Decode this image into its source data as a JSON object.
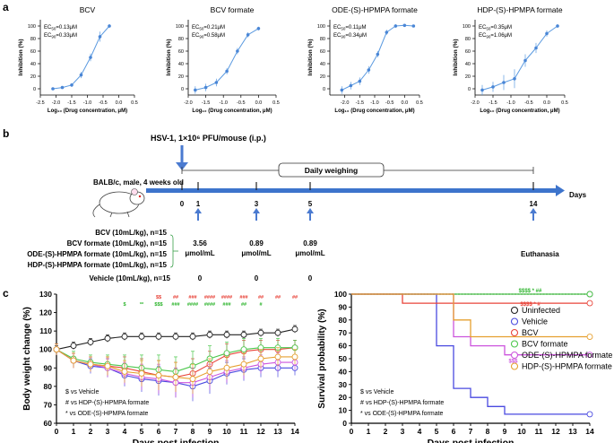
{
  "panel_labels": {
    "a": "a",
    "b": "b",
    "c": "c"
  },
  "chart_data": [
    {
      "type": "line",
      "title": "BCV",
      "ec50": "0.13",
      "ec90": "0.33",
      "xlabel": "Log₁₀ (Drug concentration, μM)",
      "ylabel": "Inhibition (%)",
      "xlim": [
        -2.5,
        0.5
      ],
      "ylim": [
        -10,
        110
      ],
      "xticks": [
        -2.5,
        -2.0,
        -1.5,
        -1.0,
        -0.5,
        0.0,
        0.5
      ],
      "yticks": [
        0,
        20,
        40,
        60,
        80,
        100
      ],
      "x": [
        -2.1,
        -1.8,
        -1.5,
        -1.2,
        -0.9,
        -0.6,
        -0.3
      ],
      "y": [
        0,
        2,
        6,
        22,
        50,
        83,
        100
      ],
      "err": [
        1,
        2,
        3,
        5,
        6,
        8,
        3
      ]
    },
    {
      "type": "line",
      "title": "BCV formate",
      "ec50": "0.21",
      "ec90": "0.58",
      "xlabel": "Log₁₀ (Drug concentration, μM)",
      "ylabel": "Inhibition (%)",
      "xlim": [
        -2.0,
        0.5
      ],
      "ylim": [
        -10,
        110
      ],
      "xticks": [
        -2.0,
        -1.5,
        -1.0,
        -0.5,
        0.0,
        0.5
      ],
      "yticks": [
        0,
        20,
        40,
        60,
        80,
        100
      ],
      "x": [
        -1.8,
        -1.5,
        -1.2,
        -0.9,
        -0.6,
        -0.3,
        0.0
      ],
      "y": [
        -2,
        2,
        10,
        28,
        60,
        86,
        96
      ],
      "err": [
        6,
        6,
        6,
        5,
        5,
        4,
        3
      ]
    },
    {
      "type": "line",
      "title": "ODE-(S)-HPMPA formate",
      "ec50": "0.11",
      "ec90": "0.34",
      "xlabel": "Log₁₀ (Drug concentration, μM)",
      "ylabel": "Inhibition (%)",
      "xlim": [
        -2.5,
        0.5
      ],
      "ylim": [
        -10,
        110
      ],
      "xticks": [
        -2.0,
        -1.5,
        -1.0,
        -0.5,
        0.0,
        0.5
      ],
      "yticks": [
        0,
        20,
        40,
        60,
        80,
        100
      ],
      "x": [
        -2.1,
        -1.8,
        -1.5,
        -1.2,
        -0.9,
        -0.6,
        -0.3,
        0.0,
        0.3
      ],
      "y": [
        -2,
        5,
        12,
        30,
        55,
        90,
        100,
        101,
        100
      ],
      "err": [
        6,
        6,
        6,
        6,
        5,
        4,
        3,
        2,
        2
      ]
    },
    {
      "type": "line",
      "title": "HDP-(S)-HPMPA formate",
      "ec50": "0.35",
      "ec90": "1.06",
      "xlabel": "Log₁₀ (Drug concentration, μM)",
      "ylabel": "Inhibition (%)",
      "xlim": [
        -2.0,
        0.5
      ],
      "ylim": [
        -10,
        110
      ],
      "xticks": [
        -2.0,
        -1.5,
        -1.0,
        -0.5,
        0.0,
        0.5
      ],
      "yticks": [
        0,
        20,
        40,
        60,
        80,
        100
      ],
      "x": [
        -1.8,
        -1.5,
        -1.2,
        -0.9,
        -0.6,
        -0.3,
        0.0,
        0.3
      ],
      "y": [
        -2,
        3,
        10,
        16,
        45,
        65,
        88,
        100
      ],
      "err": [
        8,
        8,
        12,
        15,
        10,
        8,
        5,
        3
      ]
    },
    {
      "type": "line",
      "title": "",
      "xlabel": "Days post infection",
      "ylabel": "Body weight change (%)",
      "xlim": [
        0,
        14
      ],
      "ylim": [
        60,
        130
      ],
      "xticks": [
        0,
        1,
        2,
        3,
        4,
        5,
        6,
        7,
        8,
        9,
        10,
        11,
        12,
        13,
        14
      ],
      "yticks": [
        60,
        70,
        80,
        90,
        100,
        110,
        120,
        130
      ],
      "series": [
        {
          "name": "Uninfected",
          "color": "#222222",
          "y": [
            100,
            102,
            104,
            106,
            107,
            107,
            107,
            107,
            107,
            108,
            108,
            108,
            109,
            109,
            111
          ],
          "err": [
            2,
            2,
            2,
            2,
            2,
            2,
            2,
            2,
            2,
            2,
            2,
            2,
            2,
            2,
            2
          ]
        },
        {
          "name": "Vehicle",
          "color": "#4a4ae0",
          "y": [
            100,
            94,
            91,
            90,
            86,
            84,
            83,
            82,
            80,
            83,
            87,
            89,
            90,
            90,
            90
          ],
          "err": [
            3,
            4,
            4,
            5,
            6,
            7,
            8,
            8,
            8,
            7,
            6,
            6,
            5,
            5,
            4
          ]
        },
        {
          "name": "BCV",
          "color": "#e8443a",
          "y": [
            100,
            94,
            92,
            91,
            90,
            88,
            86,
            85,
            87,
            92,
            97,
            99,
            100,
            100,
            101
          ],
          "err": [
            3,
            4,
            4,
            5,
            6,
            7,
            8,
            8,
            8,
            7,
            6,
            6,
            5,
            5,
            4
          ]
        },
        {
          "name": "BCV formate",
          "color": "#4cc74c",
          "y": [
            100,
            95,
            93,
            92,
            91,
            90,
            89,
            88,
            91,
            95,
            98,
            100,
            101,
            101,
            101
          ],
          "err": [
            3,
            4,
            4,
            5,
            6,
            7,
            8,
            8,
            8,
            7,
            6,
            6,
            5,
            5,
            4
          ]
        },
        {
          "name": "ODE-(S)-HPMPA formate",
          "color": "#cc55dd",
          "y": [
            100,
            94,
            92,
            90,
            87,
            85,
            84,
            82,
            82,
            85,
            88,
            90,
            92,
            93,
            93
          ],
          "err": [
            3,
            4,
            4,
            5,
            6,
            7,
            8,
            8,
            8,
            7,
            6,
            6,
            5,
            5,
            4
          ]
        },
        {
          "name": "HDP-(S)-HPMPA formate",
          "color": "#e6a030",
          "y": [
            100,
            94,
            92,
            91,
            88,
            87,
            86,
            85,
            84,
            88,
            90,
            92,
            95,
            96,
            96
          ],
          "err": [
            3,
            4,
            4,
            5,
            6,
            7,
            8,
            8,
            8,
            7,
            6,
            6,
            5,
            5,
            4
          ]
        }
      ],
      "legend": [
        "$ vs Vehicle",
        "# vs HDP-(S)-HPMPA formate",
        "* vs ODE-(S)-HPMPA formate"
      ],
      "annotations": {
        "red": [
          "$$",
          "##",
          "###",
          "####",
          "####",
          "###",
          "##",
          "##",
          "##"
        ],
        "green": [
          "$",
          "**",
          "$$$",
          "###",
          "####",
          "####",
          "###",
          "##",
          "#"
        ]
      }
    },
    {
      "type": "line",
      "title": "",
      "xlabel": "Days post infection",
      "ylabel": "Survival probability (%)",
      "xlim": [
        0,
        14
      ],
      "ylim": [
        0,
        100
      ],
      "xticks": [
        0,
        1,
        2,
        3,
        4,
        5,
        6,
        7,
        8,
        9,
        10,
        11,
        12,
        13,
        14
      ],
      "yticks": [
        0,
        10,
        20,
        30,
        40,
        50,
        60,
        70,
        80,
        90,
        100
      ],
      "series": [
        {
          "name": "Uninfected",
          "color": "#222222",
          "dashed": true,
          "steps": [
            [
              0,
              100
            ],
            [
              14,
              100
            ]
          ]
        },
        {
          "name": "Vehicle",
          "color": "#4a4ae0",
          "steps": [
            [
              0,
              100
            ],
            [
              5,
              100
            ],
            [
              5,
              60
            ],
            [
              6,
              60
            ],
            [
              6,
              27
            ],
            [
              7,
              27
            ],
            [
              7,
              20
            ],
            [
              8,
              20
            ],
            [
              8,
              13
            ],
            [
              9,
              13
            ],
            [
              9,
              7
            ],
            [
              14,
              7
            ]
          ]
        },
        {
          "name": "BCV",
          "color": "#e8443a",
          "steps": [
            [
              0,
              100
            ],
            [
              3,
              100
            ],
            [
              3,
              93
            ],
            [
              14,
              93
            ]
          ]
        },
        {
          "name": "BCV formate",
          "color": "#4cc74c",
          "steps": [
            [
              0,
              100
            ],
            [
              14,
              100
            ]
          ]
        },
        {
          "name": "ODE-(S)-HPMPA formate",
          "color": "#cc55dd",
          "steps": [
            [
              0,
              100
            ],
            [
              6,
              100
            ],
            [
              6,
              67
            ],
            [
              7,
              67
            ],
            [
              7,
              60
            ],
            [
              9,
              60
            ],
            [
              9,
              53
            ],
            [
              14,
              53
            ]
          ]
        },
        {
          "name": "HDP-(S)-HPMPA formate",
          "color": "#e6a030",
          "steps": [
            [
              0,
              100
            ],
            [
              6,
              100
            ],
            [
              6,
              80
            ],
            [
              7,
              80
            ],
            [
              7,
              67
            ],
            [
              14,
              67
            ]
          ]
        }
      ],
      "legend": [
        "$ vs Vehicle",
        "# vs HDP-(S)-HPMPA formate",
        "* vs ODE-(S)-HPMPA formate"
      ],
      "annotations": {
        "green": "$$$$ * ##",
        "red": "$$$$ * #",
        "purple": "$$$"
      }
    }
  ],
  "legend_c": [
    "Uninfected",
    "Vehicle",
    "BCV",
    "BCV formate",
    "ODE-(S)-HPMPA formate",
    "HDP-(S)-HPMPA formate"
  ],
  "timeline": {
    "virus": "HSV-1, 1×10⁶ PFU/mouse (i.p.)",
    "mouse": "BALB/c, male, 4 weeks old",
    "weighing": "Daily weighing",
    "days_label": "Days",
    "ticks": [
      "0",
      "1",
      "3",
      "5",
      "14"
    ],
    "euthanasia": "Euthanasia",
    "groups": [
      "BCV (10mL/kg), n=15",
      "BCV formate (10mL/kg), n=15",
      "ODE-(S)-HPMPA formate (10mL/kg), n=15",
      "HDP-(S)-HPMPA formate (10mL/kg), n=15"
    ],
    "vehicle": "Vehicle  (10mL/kg), n=15",
    "doses": [
      {
        "value": "3.56",
        "unit": "μmol/mL"
      },
      {
        "value": "0.89",
        "unit": "μmol/mL"
      },
      {
        "value": "0.89",
        "unit": "μmol/mL"
      }
    ],
    "vehicle_doses": [
      "0",
      "0",
      "0"
    ]
  }
}
